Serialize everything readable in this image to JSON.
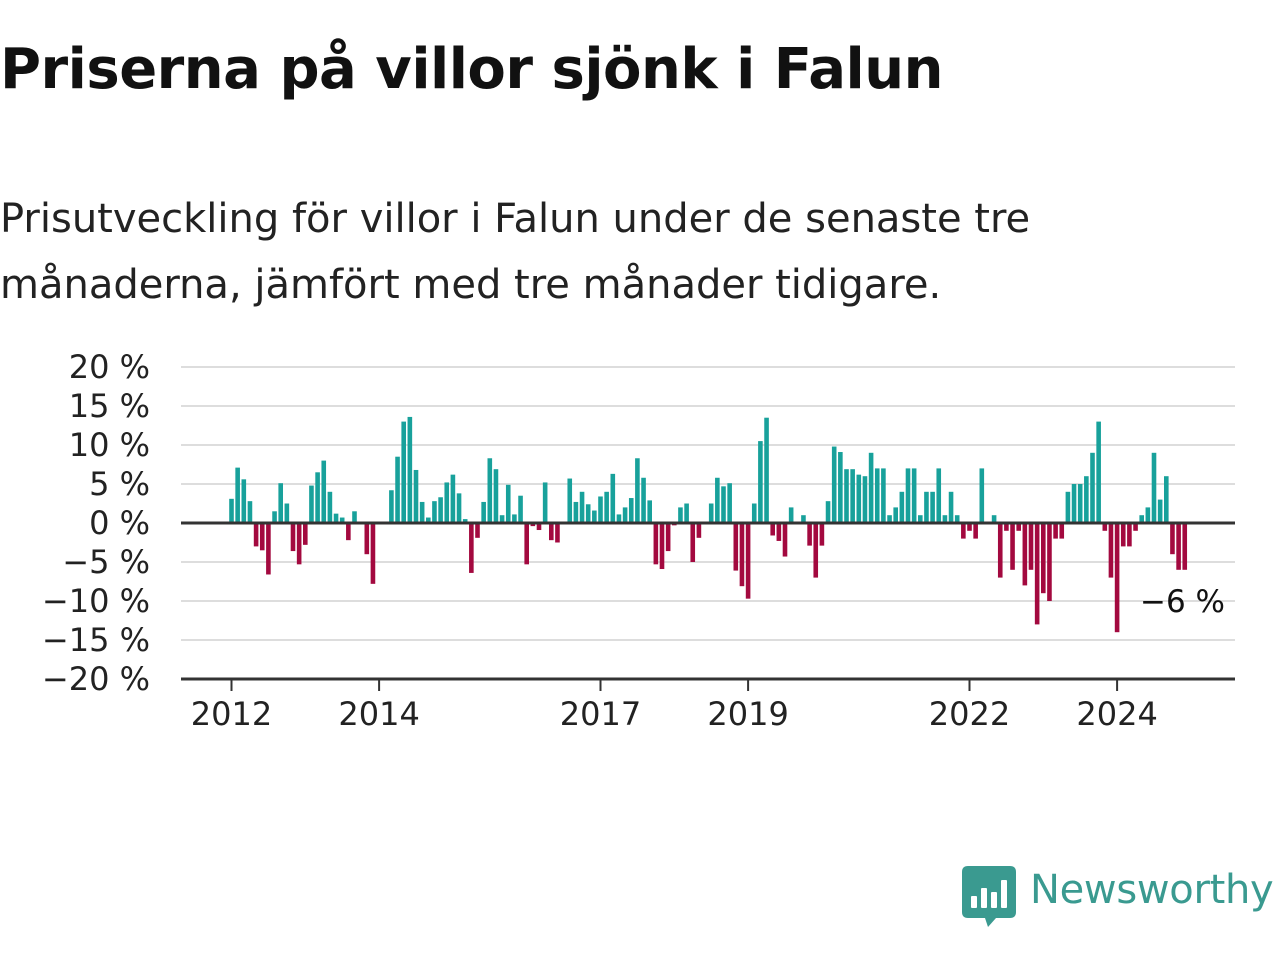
{
  "header": {
    "title": "Priserna på villor sjönk i Falun",
    "subtitle": "Prisutveckling för villor i Falun under de senaste tre månaderna, jämfört med tre månader tidigare."
  },
  "brand": {
    "name": "Newsworthy"
  },
  "colors": {
    "positive": "#18a19b",
    "negative": "#a3093f",
    "grid": "#dddddd",
    "axis": "#333333",
    "brand": "#3a9a90"
  },
  "chart_data": {
    "type": "bar",
    "title": "",
    "xlabel": "",
    "ylabel": "",
    "ylim": [
      -20,
      20
    ],
    "y_ticks": [
      {
        "value": 20,
        "label": "20 %"
      },
      {
        "value": 15,
        "label": "15 %"
      },
      {
        "value": 10,
        "label": "10 %"
      },
      {
        "value": 5,
        "label": "5 %"
      },
      {
        "value": 0,
        "label": "0 %"
      },
      {
        "value": -5,
        "label": "−5 %"
      },
      {
        "value": -10,
        "label": "−10 %"
      },
      {
        "value": -15,
        "label": "−15 %"
      },
      {
        "value": -20,
        "label": "−20 %"
      }
    ],
    "x_ticks": [
      {
        "month_index": 0,
        "label": "2012"
      },
      {
        "month_index": 24,
        "label": "2014"
      },
      {
        "month_index": 60,
        "label": "2017"
      },
      {
        "month_index": 84,
        "label": "2019"
      },
      {
        "month_index": 120,
        "label": "2022"
      },
      {
        "month_index": 144,
        "label": "2024"
      }
    ],
    "grid": true,
    "start": "2012-01",
    "frequency": "monthly",
    "values": [
      3.1,
      7.1,
      5.6,
      2.8,
      -3.0,
      -3.5,
      -6.6,
      1.5,
      5.1,
      2.5,
      -3.6,
      -5.3,
      -2.8,
      4.8,
      6.5,
      8.0,
      4.0,
      1.2,
      0.7,
      -2.2,
      1.5,
      0,
      -4.0,
      -7.8,
      0,
      0,
      4.2,
      8.5,
      13.0,
      13.6,
      6.8,
      2.7,
      0.7,
      2.8,
      3.3,
      5.2,
      6.2,
      3.8,
      0.5,
      -6.4,
      -1.9,
      2.7,
      8.3,
      6.9,
      1.0,
      4.9,
      1.1,
      3.5,
      -5.3,
      -0.4,
      -0.9,
      5.2,
      -2.2,
      -2.5,
      0,
      5.7,
      2.7,
      4.0,
      2.4,
      1.6,
      3.4,
      4.0,
      6.3,
      1.1,
      2.0,
      3.2,
      8.3,
      5.8,
      2.9,
      -5.3,
      -5.9,
      -3.6,
      -0.3,
      2.0,
      2.5,
      -5.0,
      -1.9,
      0,
      2.5,
      5.8,
      4.7,
      5.1,
      -6.1,
      -8.1,
      -9.7,
      2.5,
      10.5,
      13.5,
      -1.6,
      -2.3,
      -4.3,
      2.0,
      0,
      1.0,
      -2.9,
      -7.0,
      -2.9,
      2.8,
      9.8,
      9.1,
      6.9,
      6.9,
      6.2,
      6.0,
      9.0,
      7.0,
      7.0,
      1.0,
      2.0,
      4.0,
      7.0,
      7.0,
      1.0,
      4.0,
      4.0,
      7.0,
      1.0,
      4.0,
      1.0,
      -2.0,
      -1.0,
      -2.0,
      7.0,
      0,
      1.0,
      -7.0,
      -1.0,
      -6.0,
      -1.0,
      -8.0,
      -6.0,
      -13.0,
      -9.0,
      -10.0,
      -2.0,
      -2.0,
      4.0,
      5.0,
      5.0,
      6.0,
      9.0,
      13.0,
      -1.0,
      -7.0,
      -14.0,
      -3.0,
      -3.0,
      -1.0,
      1.0,
      2.0,
      9.0,
      3.0,
      6.0,
      -4.0,
      -6.0,
      -6.0
    ],
    "annotation": {
      "label": "−6 %",
      "month_index": 157,
      "value": -6
    }
  }
}
